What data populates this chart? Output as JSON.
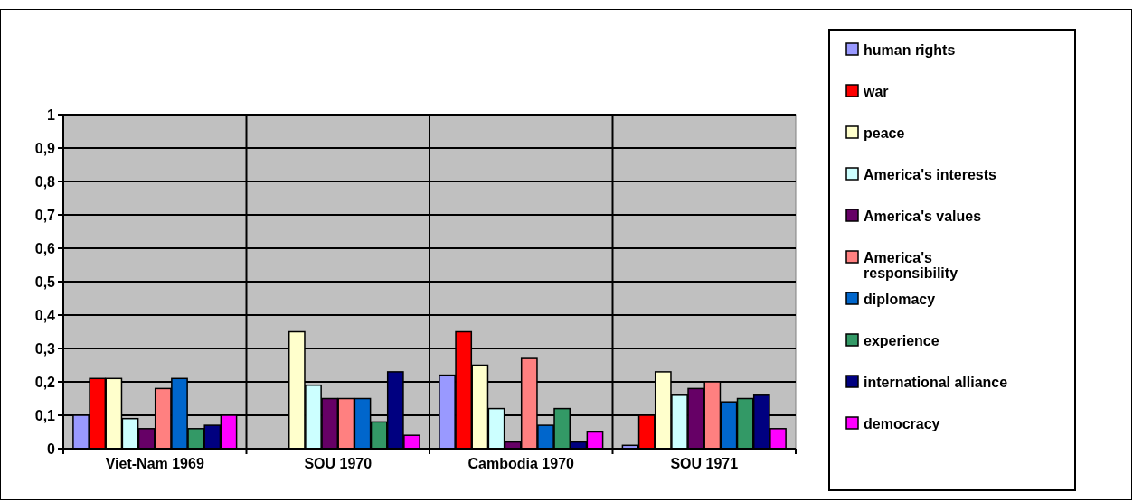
{
  "chart_data": {
    "type": "bar",
    "categories": [
      "Viet-Nam 1969",
      "SOU 1970",
      "Cambodia 1970",
      "SOU 1971"
    ],
    "series": [
      {
        "name": "human rights",
        "color": "#9999ff",
        "values": [
          0.1,
          0,
          0.22,
          0.01
        ]
      },
      {
        "name": "war",
        "color": "#ff0000",
        "values": [
          0.21,
          0,
          0.35,
          0.1
        ]
      },
      {
        "name": "peace",
        "color": "#ffffcc",
        "values": [
          0.21,
          0.35,
          0.25,
          0.23
        ]
      },
      {
        "name": "America's interests",
        "color": "#ccffff",
        "values": [
          0.09,
          0.19,
          0.12,
          0.16
        ]
      },
      {
        "name": "America's values",
        "color": "#660066",
        "values": [
          0.06,
          0.15,
          0.02,
          0.18
        ]
      },
      {
        "name": "America's responsibility",
        "color": "#ff8080",
        "values": [
          0.18,
          0.15,
          0.27,
          0.2
        ]
      },
      {
        "name": "diplomacy",
        "color": "#0066cc",
        "values": [
          0.21,
          0.15,
          0.07,
          0.14
        ]
      },
      {
        "name": "experience",
        "color": "#339966",
        "values": [
          0.06,
          0.08,
          0.12,
          0.15
        ]
      },
      {
        "name": "international alliance",
        "color": "#000080",
        "values": [
          0.07,
          0.23,
          0.02,
          0.16
        ]
      },
      {
        "name": "democracy",
        "color": "#ff00ff",
        "values": [
          0.1,
          0.04,
          0.05,
          0.06
        ]
      }
    ],
    "ylim": [
      0,
      1
    ],
    "yticks": [
      0,
      {
        "value": 0.1,
        "label": "0,1"
      },
      {
        "value": 0.2,
        "label": "0,2"
      },
      {
        "value": 0.3,
        "label": "0,3"
      },
      {
        "value": 0.4,
        "label": "0,4"
      },
      {
        "value": 0.5,
        "label": "0,5"
      },
      {
        "value": 0.6,
        "label": "0,6"
      },
      {
        "value": 0.7,
        "label": "0,7"
      },
      {
        "value": 0.8,
        "label": "0,8"
      },
      {
        "value": 0.9,
        "label": "0,9"
      },
      1
    ],
    "grid": true,
    "legend": "right"
  }
}
